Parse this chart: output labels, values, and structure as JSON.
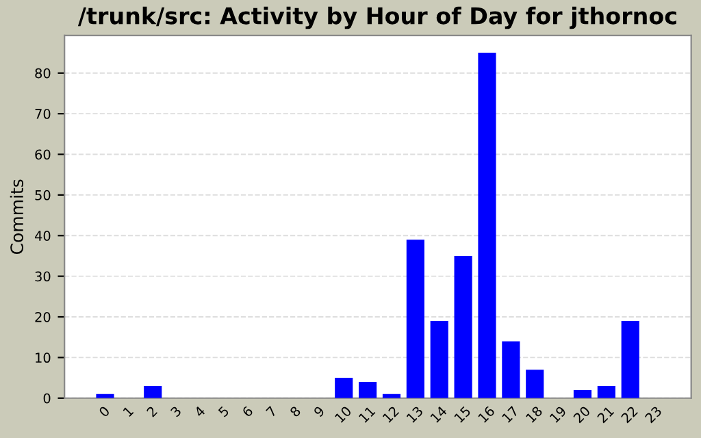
{
  "chart_data": {
    "type": "bar",
    "title": "/trunk/src: Activity by Hour of Day for jthornoc",
    "ylabel": "Commits",
    "categories": [
      "0",
      "1",
      "2",
      "3",
      "4",
      "5",
      "6",
      "7",
      "8",
      "9",
      "10",
      "11",
      "12",
      "13",
      "14",
      "15",
      "16",
      "17",
      "18",
      "19",
      "20",
      "21",
      "22",
      "23"
    ],
    "values": [
      1,
      0,
      3,
      0,
      0,
      0,
      0,
      0,
      0,
      0,
      5,
      4,
      1,
      39,
      19,
      35,
      85,
      14,
      7,
      0,
      2,
      3,
      19,
      0
    ],
    "color": "#0000ff",
    "ylim": [
      0,
      89.25
    ],
    "yticks": [
      0,
      10,
      20,
      30,
      40,
      50,
      60,
      70,
      80
    ],
    "grid": "y"
  }
}
